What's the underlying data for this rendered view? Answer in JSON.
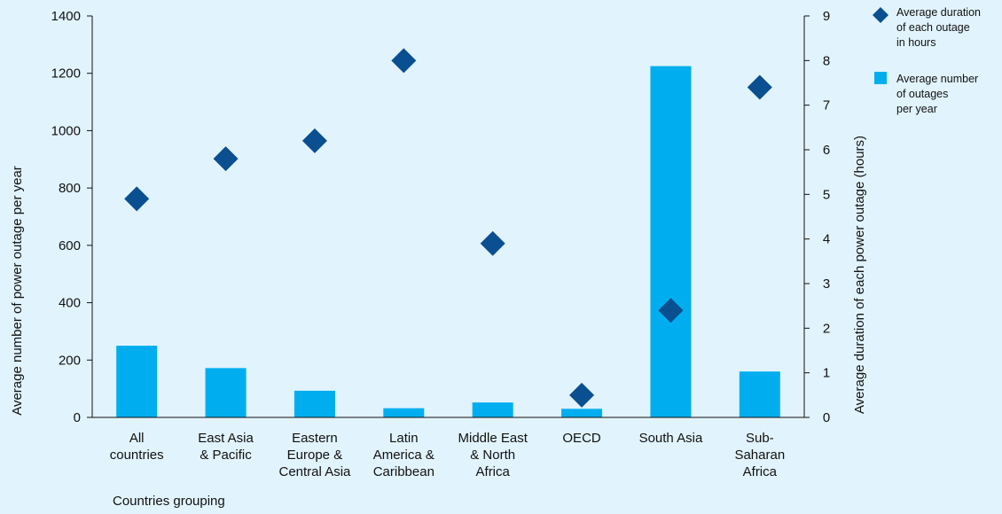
{
  "chart_data": {
    "type": "bar",
    "categories": [
      [
        "All",
        "countries"
      ],
      [
        "East Asia",
        "& Pacific"
      ],
      [
        "Eastern",
        "Europe &",
        "Central Asia"
      ],
      [
        "Latin",
        "America &",
        "Caribbean"
      ],
      [
        "Middle East",
        "& North",
        "Africa"
      ],
      [
        "OECD"
      ],
      [
        "South Asia"
      ],
      [
        "Sub-",
        "Saharan",
        "Africa"
      ]
    ],
    "series": [
      {
        "name": [
          "Average number",
          "of outages",
          "per year"
        ],
        "type": "bar",
        "axis": "left",
        "color": "#00aeef",
        "values": [
          250,
          172,
          93,
          32,
          52,
          30,
          1225,
          160
        ]
      },
      {
        "name": [
          "Average duration",
          "of each outage",
          "in hours"
        ],
        "type": "scatter",
        "marker": "diamond",
        "axis": "right",
        "color": "#0a4f8f",
        "values": [
          4.9,
          5.8,
          6.2,
          8.0,
          3.9,
          0.5,
          2.4,
          7.4
        ]
      }
    ],
    "xlabel": "Countries grouping",
    "ylabel": "Average number of power outage per year",
    "y2label": "Average duration of each power outage (hours)",
    "ylim": [
      0,
      1400
    ],
    "y2lim": [
      0,
      9
    ],
    "yticks": [
      0,
      200,
      400,
      600,
      800,
      1000,
      1200,
      1400
    ],
    "y2ticks": [
      0,
      1,
      2,
      3,
      4,
      5,
      6,
      7,
      8,
      9
    ],
    "grid": false,
    "legend_position": "top-right",
    "background": "#e1f3fc"
  }
}
